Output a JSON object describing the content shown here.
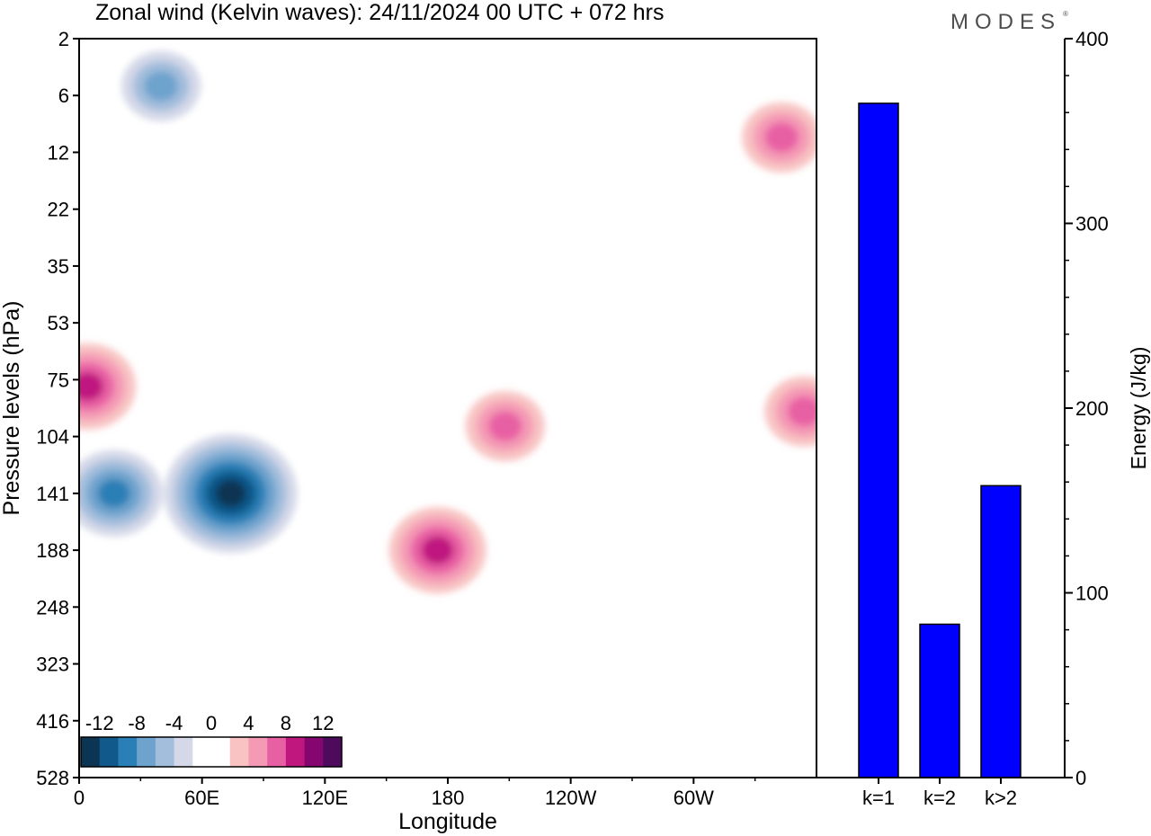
{
  "title": "Zonal wind (Kelvin waves):  24/11/2024  00 UTC  + 072 hrs",
  "logo": "MODES",
  "chart_data": [
    {
      "type": "heatmap",
      "subtype": "filled-contour hovmoller",
      "xlabel": "Longitude",
      "ylabel": "Pressure levels (hPa)",
      "x_ticks": [
        "0",
        "60E",
        "120E",
        "180",
        "120W",
        "60W"
      ],
      "x_tick_degrees": [
        0,
        60,
        120,
        180,
        240,
        300
      ],
      "xlim": [
        0,
        360
      ],
      "y_ticks": [
        "2",
        "6",
        "12",
        "22",
        "35",
        "53",
        "75",
        "104",
        "141",
        "188",
        "248",
        "323",
        "416",
        "528"
      ],
      "y_scale": "log-pressure (inverted)",
      "colorbar_labels": [
        "-12",
        "-8",
        "-4",
        "0",
        "4",
        "8",
        "12"
      ],
      "colorbar_colors": [
        "#0c3553",
        "#11598b",
        "#2a7fb6",
        "#6ea3cd",
        "#a3bddc",
        "#d4d8e8",
        "#ffffff",
        "#ffffff",
        "#f8c3c2",
        "#f49ab5",
        "#e860a4",
        "#c0177f",
        "#85066f",
        "#4e0a5d"
      ],
      "features": [
        {
          "sign": "negative",
          "peak": -14,
          "lon": 74,
          "hPa": 141
        },
        {
          "sign": "negative",
          "peak": -8,
          "lon": 17,
          "hPa": 141
        },
        {
          "sign": "negative",
          "peak": -6,
          "lon": 40,
          "hPa": 5
        },
        {
          "sign": "positive",
          "peak": 8,
          "lon": 175,
          "hPa": 188
        },
        {
          "sign": "positive",
          "peak": 8,
          "lon": 4,
          "hPa": 78
        },
        {
          "sign": "positive",
          "peak": 6,
          "lon": 208,
          "hPa": 98
        },
        {
          "sign": "positive",
          "peak": 6,
          "lon": 354,
          "hPa": 90
        },
        {
          "sign": "positive",
          "peak": 6,
          "lon": 343,
          "hPa": 10
        }
      ]
    },
    {
      "type": "bar",
      "categories": [
        "k=1",
        "k=2",
        "k>2"
      ],
      "values": [
        365,
        83,
        158
      ],
      "ylabel": "Energy (J/kg)",
      "ylim": [
        0,
        400
      ],
      "y_ticks": [
        "0",
        "100",
        "200",
        "300",
        "400"
      ],
      "bar_color": "#0000ff"
    }
  ]
}
